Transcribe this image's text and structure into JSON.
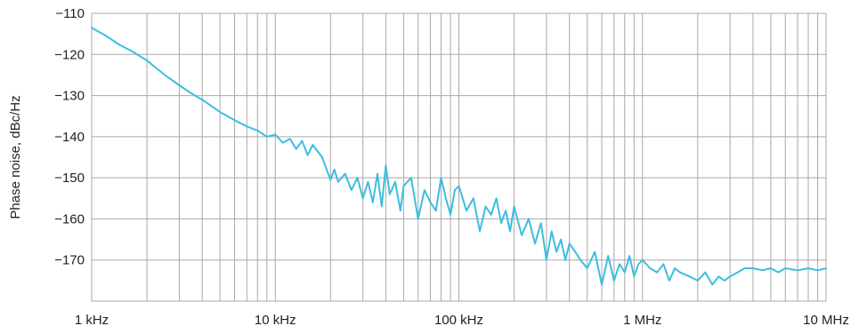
{
  "chart_data": {
    "type": "line",
    "title": "",
    "xlabel": "",
    "ylabel": "Phase noise, dBc/Hz",
    "x_scale": "log",
    "x_unit": "Hz",
    "xlim": [
      1000,
      10000000
    ],
    "ylim": [
      -180,
      -110
    ],
    "grid": true,
    "legend": "none",
    "x_ticks": [
      {
        "value": 1000,
        "label": "1 kHz"
      },
      {
        "value": 10000,
        "label": "10 kHz"
      },
      {
        "value": 100000,
        "label": "100 kHz"
      },
      {
        "value": 1000000,
        "label": "1 MHz"
      },
      {
        "value": 10000000,
        "label": "10 MHz"
      }
    ],
    "y_ticks": [
      {
        "value": -110,
        "label": "−110"
      },
      {
        "value": -120,
        "label": "−120"
      },
      {
        "value": -130,
        "label": "−130"
      },
      {
        "value": -140,
        "label": "−140"
      },
      {
        "value": -150,
        "label": "−150"
      },
      {
        "value": -160,
        "label": "−160"
      },
      {
        "value": -170,
        "label": "−170"
      }
    ],
    "series": [
      {
        "color": "#3dbedf",
        "x": [
          1000,
          1200,
          1400,
          1700,
          2000,
          2500,
          3000,
          3500,
          4000,
          5000,
          6000,
          7000,
          8000,
          9000,
          10000,
          11000,
          12000,
          13000,
          14000,
          15000,
          16000,
          18000,
          20000,
          21000,
          22000,
          24000,
          26000,
          28000,
          30000,
          32000,
          34000,
          36000,
          38000,
          40000,
          42000,
          45000,
          48000,
          50000,
          55000,
          60000,
          65000,
          70000,
          75000,
          80000,
          85000,
          90000,
          95000,
          100000,
          110000,
          120000,
          130000,
          140000,
          150000,
          160000,
          170000,
          180000,
          190000,
          200000,
          220000,
          240000,
          260000,
          280000,
          300000,
          320000,
          340000,
          360000,
          380000,
          400000,
          430000,
          460000,
          500000,
          550000,
          600000,
          650000,
          700000,
          750000,
          800000,
          850000,
          900000,
          950000,
          1000000,
          1100000,
          1200000,
          1300000,
          1400000,
          1500000,
          1600000,
          1800000,
          2000000,
          2200000,
          2400000,
          2600000,
          2800000,
          3000000,
          3300000,
          3600000,
          4000000,
          4500000,
          5000000,
          5500000,
          6000000,
          7000000,
          8000000,
          9000000,
          10000000
        ],
        "y": [
          -113.5,
          -115.5,
          -117.5,
          -119.5,
          -121.5,
          -125,
          -127.5,
          -129.5,
          -131,
          -134,
          -136,
          -137.5,
          -138.5,
          -140,
          -139.5,
          -141.5,
          -140.5,
          -143,
          -141,
          -144.5,
          -142,
          -145,
          -150.5,
          -148,
          -151,
          -149,
          -153,
          -150,
          -155,
          -151,
          -156,
          -149,
          -157,
          -147,
          -154,
          -151,
          -158,
          -152,
          -150,
          -160,
          -153,
          -156,
          -158,
          -150,
          -155,
          -159,
          -153,
          -152,
          -158,
          -155,
          -163,
          -157,
          -159,
          -155,
          -161,
          -158,
          -163,
          -157,
          -164,
          -160,
          -166,
          -161,
          -170,
          -163,
          -168,
          -165,
          -170,
          -166,
          -168,
          -170,
          -172,
          -168,
          -176,
          -169,
          -175,
          -171,
          -173,
          -169,
          -174,
          -171,
          -170,
          -172,
          -173,
          -171,
          -175,
          -172,
          -173,
          -174,
          -175,
          -173,
          -176,
          -174,
          -175,
          -174,
          -173,
          -172,
          -172,
          -172.5,
          -172,
          -173,
          -172,
          -172.5,
          -172,
          -172.5,
          -172
        ]
      }
    ]
  }
}
